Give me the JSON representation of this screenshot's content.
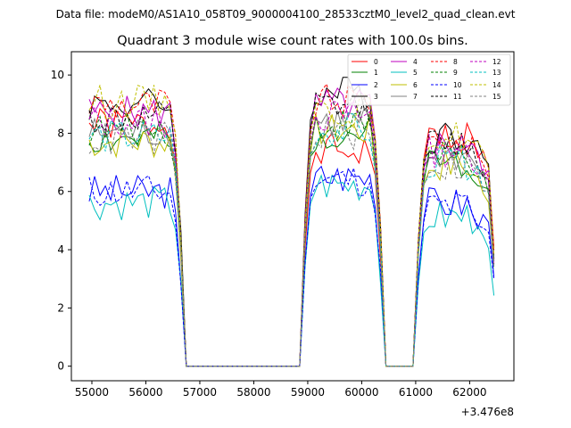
{
  "figure": {
    "suptitle": "Data file: modeM0/AS1A10_058T09_9000004100_28533cztM0_level2_quad_clean.evt",
    "title": "Quadrant 3 module wise count rates with 100.0s bins.",
    "offset_label": "+3.476e8"
  },
  "chart_data": {
    "type": "line",
    "title": "Quadrant 3 module wise count rates with 100.0s bins.",
    "x_offset": 347600000,
    "xlim": [
      54620,
      62820
    ],
    "ylim": [
      -0.5,
      10.8
    ],
    "x_ticks": [
      55000,
      56000,
      57000,
      58000,
      59000,
      60000,
      61000,
      62000
    ],
    "x_tick_labels": [
      "55000",
      "56000",
      "57000",
      "58000",
      "59000",
      "60000",
      "61000",
      "62000"
    ],
    "y_ticks": [
      0,
      2,
      4,
      6,
      8,
      10
    ],
    "y_tick_labels": [
      "0",
      "2",
      "4",
      "6",
      "8",
      "10"
    ],
    "legend_position": "top-right",
    "grid": false,
    "bin_width_s": 100,
    "segments": [
      {
        "x_start": 54950,
        "x_end": 56650,
        "n_bins": 18
      },
      {
        "x_start": 58950,
        "x_end": 60350,
        "n_bins": 15
      },
      {
        "x_start": 61050,
        "x_end": 62450,
        "n_bins": 15
      }
    ],
    "gap_x": [
      56750,
      56850,
      58850,
      60450,
      60550,
      60950
    ],
    "series": [
      {
        "name": "0",
        "color": "#ff0000",
        "dash": "solid",
        "levels": [
          8.3,
          7.4,
          7.9
        ],
        "seed": 1
      },
      {
        "name": "1",
        "color": "#008000",
        "dash": "solid",
        "levels": [
          7.8,
          8.0,
          7.0
        ],
        "seed": 2
      },
      {
        "name": "2",
        "color": "#0000ff",
        "dash": "solid",
        "levels": [
          6.0,
          6.5,
          5.6
        ],
        "seed": 3
      },
      {
        "name": "3",
        "color": "#000000",
        "dash": "solid",
        "levels": [
          9.0,
          9.4,
          7.9
        ],
        "seed": 4
      },
      {
        "name": "4",
        "color": "#bf00bf",
        "dash": "solid",
        "levels": [
          8.7,
          9.0,
          7.6
        ],
        "seed": 5
      },
      {
        "name": "5",
        "color": "#00bfbf",
        "dash": "solid",
        "levels": [
          5.6,
          6.2,
          5.1
        ],
        "seed": 6
      },
      {
        "name": "6",
        "color": "#bfbf00",
        "dash": "solid",
        "levels": [
          7.7,
          8.1,
          6.9
        ],
        "seed": 7
      },
      {
        "name": "7",
        "color": "#808080",
        "dash": "solid",
        "levels": [
          8.0,
          8.4,
          7.2
        ],
        "seed": 8
      },
      {
        "name": "8",
        "color": "#ff0000",
        "dash": "dashed",
        "levels": [
          9.0,
          9.1,
          7.8
        ],
        "seed": 9
      },
      {
        "name": "9",
        "color": "#008000",
        "dash": "dashed",
        "levels": [
          8.1,
          8.3,
          7.1
        ],
        "seed": 10
      },
      {
        "name": "10",
        "color": "#0000ff",
        "dash": "dashed",
        "levels": [
          6.0,
          6.4,
          5.5
        ],
        "seed": 11
      },
      {
        "name": "11",
        "color": "#000000",
        "dash": "dashed",
        "levels": [
          8.5,
          8.9,
          7.6
        ],
        "seed": 12
      },
      {
        "name": "12",
        "color": "#bf00bf",
        "dash": "dashed",
        "levels": [
          8.4,
          8.6,
          7.4
        ],
        "seed": 13
      },
      {
        "name": "13",
        "color": "#00bfbf",
        "dash": "dashed",
        "levels": [
          7.9,
          8.1,
          7.0
        ],
        "seed": 14
      },
      {
        "name": "14",
        "color": "#bfbf00",
        "dash": "dashed",
        "levels": [
          9.1,
          8.8,
          7.9
        ],
        "seed": 15
      },
      {
        "name": "15",
        "color": "#808080",
        "dash": "dashed",
        "levels": [
          7.8,
          8.0,
          6.9
        ],
        "seed": 16
      }
    ]
  }
}
